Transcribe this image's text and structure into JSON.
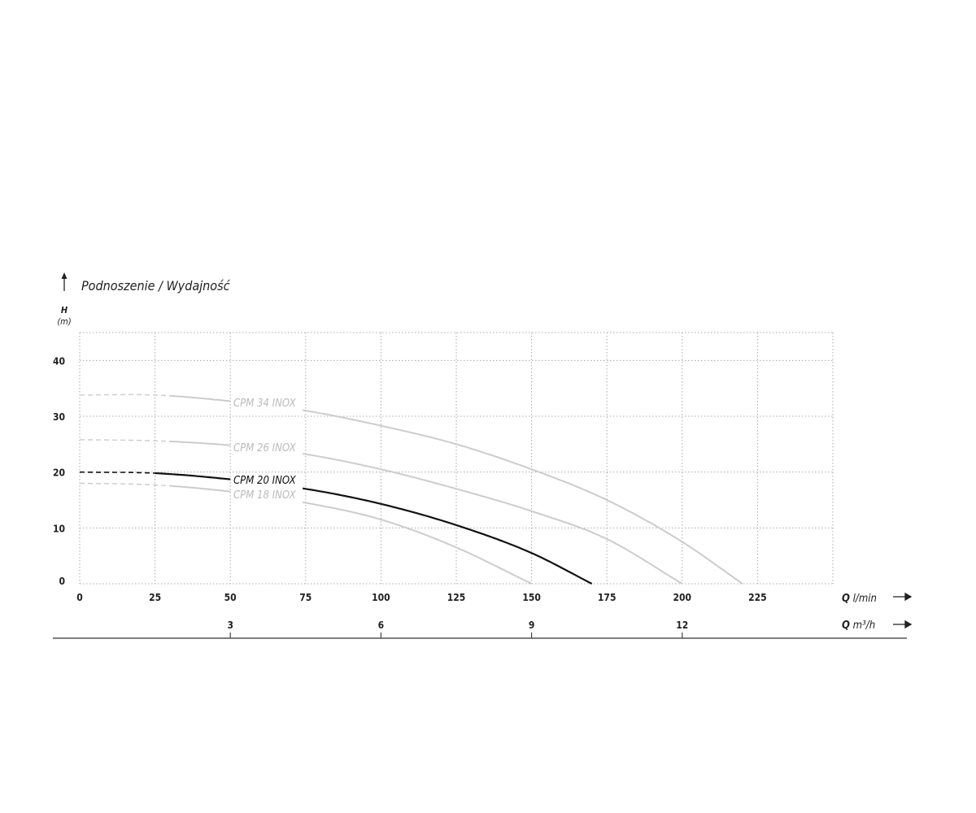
{
  "chart_data": {
    "type": "line",
    "title": "Podnoszenie / Wydajność",
    "ylabel": "H",
    "yunit": "(m)",
    "xlabel": "Q",
    "xunit": "l/min",
    "x2label": "Q",
    "x2unit": "m³/h",
    "xlim": [
      0,
      250
    ],
    "ylim": [
      0,
      45
    ],
    "grid": true,
    "xticks": [
      0,
      25,
      50,
      75,
      100,
      125,
      150,
      175,
      200,
      225
    ],
    "yticks": [
      0,
      10,
      20,
      30,
      40
    ],
    "x2ticks": [
      {
        "value": 3,
        "q": 50
      },
      {
        "value": 6,
        "q": 100
      },
      {
        "value": 9,
        "q": 150
      },
      {
        "value": 12,
        "q": 200
      }
    ],
    "series": [
      {
        "name": "CPM 34 INOX",
        "color": "#cccccc",
        "dashed_until": 30,
        "x": [
          0,
          25,
          50,
          75,
          100,
          125,
          150,
          175,
          200,
          220
        ],
        "y": [
          33.8,
          33.8,
          32.7,
          31,
          28.3,
          25,
          20.5,
          15,
          7.5,
          0
        ]
      },
      {
        "name": "CPM 26 INOX",
        "color": "#cccccc",
        "dashed_until": 30,
        "x": [
          0,
          25,
          50,
          75,
          100,
          125,
          150,
          175,
          200
        ],
        "y": [
          25.8,
          25.6,
          24.8,
          23.2,
          20.5,
          17,
          13,
          8,
          0
        ]
      },
      {
        "name": "CPM 20 INOX",
        "color": "#111111",
        "dashed_until": 25,
        "x": [
          0,
          25,
          50,
          75,
          100,
          125,
          150,
          170
        ],
        "y": [
          20,
          19.8,
          18.7,
          17,
          14.3,
          10.5,
          5.5,
          0
        ]
      },
      {
        "name": "CPM 18 INOX",
        "color": "#cccccc",
        "dashed_until": 30,
        "x": [
          0,
          25,
          50,
          75,
          100,
          125,
          150
        ],
        "y": [
          18,
          17.7,
          16.5,
          14.5,
          11.5,
          6.5,
          0
        ]
      }
    ]
  }
}
